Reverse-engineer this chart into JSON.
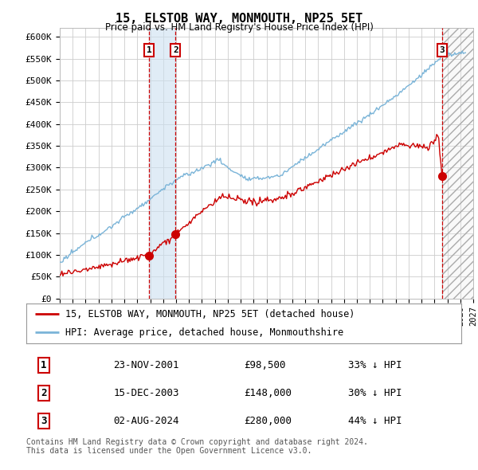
{
  "title": "15, ELSTOB WAY, MONMOUTH, NP25 5ET",
  "subtitle": "Price paid vs. HM Land Registry's House Price Index (HPI)",
  "ylim": [
    0,
    620000
  ],
  "yticks": [
    0,
    50000,
    100000,
    150000,
    200000,
    250000,
    300000,
    350000,
    400000,
    450000,
    500000,
    550000,
    600000
  ],
  "ytick_labels": [
    "£0",
    "£50K",
    "£100K",
    "£150K",
    "£200K",
    "£250K",
    "£300K",
    "£350K",
    "£400K",
    "£450K",
    "£500K",
    "£550K",
    "£600K"
  ],
  "hpi_color": "#7ab4d8",
  "price_color": "#cc0000",
  "background_color": "#ffffff",
  "grid_color": "#cccccc",
  "transactions": [
    {
      "num": 1,
      "date": "23-NOV-2001",
      "price": 98500,
      "x_year": 2001.9
    },
    {
      "num": 2,
      "date": "15-DEC-2003",
      "price": 148000,
      "x_year": 2003.96
    },
    {
      "num": 3,
      "date": "02-AUG-2024",
      "price": 280000,
      "x_year": 2024.58
    }
  ],
  "legend_label_price": "15, ELSTOB WAY, MONMOUTH, NP25 5ET (detached house)",
  "legend_label_hpi": "HPI: Average price, detached house, Monmouthshire",
  "footnote": "Contains HM Land Registry data © Crown copyright and database right 2024.\nThis data is licensed under the Open Government Licence v3.0.",
  "table_rows": [
    [
      "1",
      "23-NOV-2001",
      "£98,500",
      "33% ↓ HPI"
    ],
    [
      "2",
      "15-DEC-2003",
      "£148,000",
      "30% ↓ HPI"
    ],
    [
      "3",
      "02-AUG-2024",
      "£280,000",
      "44% ↓ HPI"
    ]
  ],
  "xlim": [
    1995,
    2027
  ],
  "xtick_start": 1995,
  "xtick_end": 2027
}
